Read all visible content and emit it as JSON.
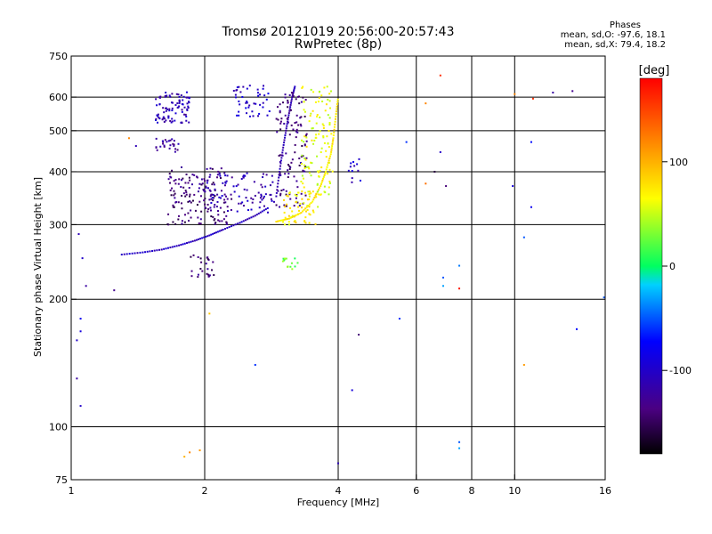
{
  "header": {
    "title_line1": "Tromsø 20121019 20:56:00-20:57:43",
    "title_line2": "RwPretec (8p)",
    "stats_heading": "Phases",
    "stats_o": "mean, sd,O: -97.6, 18.1",
    "stats_x": "mean, sd,X:  79.4, 18.2"
  },
  "chart_data": {
    "type": "scatter",
    "title": "Tromsø 20121019 20:56:00-20:57:43",
    "subtitle": "RwPretec (8p)",
    "xlabel": "Frequency [MHz]",
    "ylabel": "Stationary phase Virtual Height [km]",
    "x_scale": "log",
    "y_scale": "log",
    "xlim": [
      1,
      16
    ],
    "ylim": [
      75,
      750
    ],
    "x_ticks": [
      1,
      2,
      4,
      6,
      8,
      10,
      16
    ],
    "y_ticks": [
      75,
      100,
      200,
      300,
      400,
      500,
      600,
      750
    ],
    "grid_x": [
      2,
      4,
      6,
      8,
      10
    ],
    "grid_y": [
      100,
      200,
      300,
      400,
      500,
      600
    ],
    "colorbar": {
      "label": "[deg]",
      "min": -180,
      "max": 180,
      "ticks": [
        100,
        0,
        -100
      ],
      "colormap": "rainbow",
      "colors": [
        "#000000",
        "#4b0082",
        "#0000ff",
        "#00ffff",
        "#00ff00",
        "#ffff00",
        "#ff0000"
      ]
    },
    "traces": [
      {
        "name_desc": "O-trace lower",
        "f": [
          1.3,
          1.45,
          1.6,
          1.75,
          1.9,
          2.05,
          2.2,
          2.4,
          2.6,
          2.8
        ],
        "h": [
          255,
          258,
          262,
          268,
          275,
          283,
          292,
          303,
          315,
          330
        ],
        "phase": -105
      },
      {
        "name_desc": "O-trace upper cusp",
        "f": [
          2.9,
          2.95,
          3.0,
          3.05,
          3.1,
          3.15,
          3.2
        ],
        "h": [
          350,
          400,
          450,
          500,
          550,
          600,
          640
        ],
        "phase": -115
      },
      {
        "name_desc": "X-trace",
        "f": [
          2.9,
          3.1,
          3.3,
          3.5,
          3.65,
          3.75,
          3.85,
          3.9,
          3.95,
          4.0
        ],
        "h": [
          305,
          310,
          320,
          340,
          370,
          400,
          440,
          480,
          540,
          600
        ],
        "phase": 75
      }
    ],
    "clusters": [
      {
        "f": [
          1.55,
          1.85
        ],
        "h": [
          520,
          620
        ],
        "phase": -110,
        "n": 90
      },
      {
        "f": [
          1.55,
          1.75
        ],
        "h": [
          445,
          480
        ],
        "phase": -120,
        "n": 25
      },
      {
        "f": [
          1.65,
          2.3
        ],
        "h": [
          300,
          360
        ],
        "phase": -140,
        "n": 90
      },
      {
        "f": [
          1.65,
          2.2
        ],
        "h": [
          350,
          410
        ],
        "phase": -135,
        "n": 60
      },
      {
        "f": [
          2.0,
          2.9
        ],
        "h": [
          320,
          400
        ],
        "phase": -110,
        "n": 90
      },
      {
        "f": [
          2.3,
          2.8
        ],
        "h": [
          540,
          640
        ],
        "phase": -100,
        "n": 45
      },
      {
        "f": [
          2.9,
          3.4
        ],
        "h": [
          330,
          620
        ],
        "phase": -135,
        "n": 110
      },
      {
        "f": [
          3.3,
          3.9
        ],
        "h": [
          350,
          640
        ],
        "phase": 60,
        "n": 110
      },
      {
        "f": [
          3.0,
          3.6
        ],
        "h": [
          300,
          360
        ],
        "phase": 70,
        "n": 60
      },
      {
        "f": [
          1.85,
          2.1
        ],
        "h": [
          225,
          255
        ],
        "phase": -140,
        "n": 25
      },
      {
        "f": [
          3.0,
          3.25
        ],
        "h": [
          235,
          250
        ],
        "phase": 25,
        "n": 14
      },
      {
        "f": [
          4.2,
          4.5
        ],
        "h": [
          370,
          430
        ],
        "phase": -100,
        "n": 12
      }
    ],
    "scattered": [
      {
        "f": 1.03,
        "h": 160,
        "phase": -100
      },
      {
        "f": 1.05,
        "h": 168,
        "phase": -90
      },
      {
        "f": 1.04,
        "h": 285,
        "phase": -110
      },
      {
        "f": 1.06,
        "h": 250,
        "phase": -100
      },
      {
        "f": 1.08,
        "h": 215,
        "phase": -120
      },
      {
        "f": 1.05,
        "h": 180,
        "phase": -80
      },
      {
        "f": 1.03,
        "h": 130,
        "phase": -120
      },
      {
        "f": 1.05,
        "h": 112,
        "phase": -100
      },
      {
        "f": 1.25,
        "h": 210,
        "phase": -130
      },
      {
        "f": 1.4,
        "h": 460,
        "phase": -110
      },
      {
        "f": 1.35,
        "h": 480,
        "phase": 120
      },
      {
        "f": 2.05,
        "h": 185,
        "phase": 90
      },
      {
        "f": 1.85,
        "h": 87,
        "phase": 120
      },
      {
        "f": 1.95,
        "h": 88,
        "phase": 110
      },
      {
        "f": 1.8,
        "h": 85,
        "phase": 100
      },
      {
        "f": 2.6,
        "h": 140,
        "phase": -60
      },
      {
        "f": 4.0,
        "h": 82,
        "phase": -110
      },
      {
        "f": 4.3,
        "h": 122,
        "phase": -90
      },
      {
        "f": 4.45,
        "h": 165,
        "phase": -140
      },
      {
        "f": 5.5,
        "h": 180,
        "phase": -60
      },
      {
        "f": 5.7,
        "h": 470,
        "phase": -60
      },
      {
        "f": 6.3,
        "h": 580,
        "phase": 120
      },
      {
        "f": 6.3,
        "h": 375,
        "phase": 130
      },
      {
        "f": 6.6,
        "h": 400,
        "phase": -160
      },
      {
        "f": 6.8,
        "h": 675,
        "phase": 160
      },
      {
        "f": 6.8,
        "h": 445,
        "phase": -100
      },
      {
        "f": 7.0,
        "h": 370,
        "phase": -140
      },
      {
        "f": 6.9,
        "h": 215,
        "phase": -30
      },
      {
        "f": 6.9,
        "h": 225,
        "phase": -50
      },
      {
        "f": 7.5,
        "h": 240,
        "phase": -40
      },
      {
        "f": 7.5,
        "h": 212,
        "phase": 170
      },
      {
        "f": 7.5,
        "h": 92,
        "phase": -50
      },
      {
        "f": 7.5,
        "h": 89,
        "phase": -30
      },
      {
        "f": 9.9,
        "h": 370,
        "phase": -90
      },
      {
        "f": 10.0,
        "h": 610,
        "phase": 120
      },
      {
        "f": 10.5,
        "h": 280,
        "phase": -50
      },
      {
        "f": 10.5,
        "h": 140,
        "phase": 110
      },
      {
        "f": 10.9,
        "h": 470,
        "phase": -70
      },
      {
        "f": 10.9,
        "h": 330,
        "phase": -80
      },
      {
        "f": 11.0,
        "h": 595,
        "phase": 160
      },
      {
        "f": 12.2,
        "h": 615,
        "phase": -120
      },
      {
        "f": 13.5,
        "h": 620,
        "phase": -130
      },
      {
        "f": 13.8,
        "h": 170,
        "phase": -70
      },
      {
        "f": 15.9,
        "h": 202,
        "phase": -50
      }
    ]
  }
}
